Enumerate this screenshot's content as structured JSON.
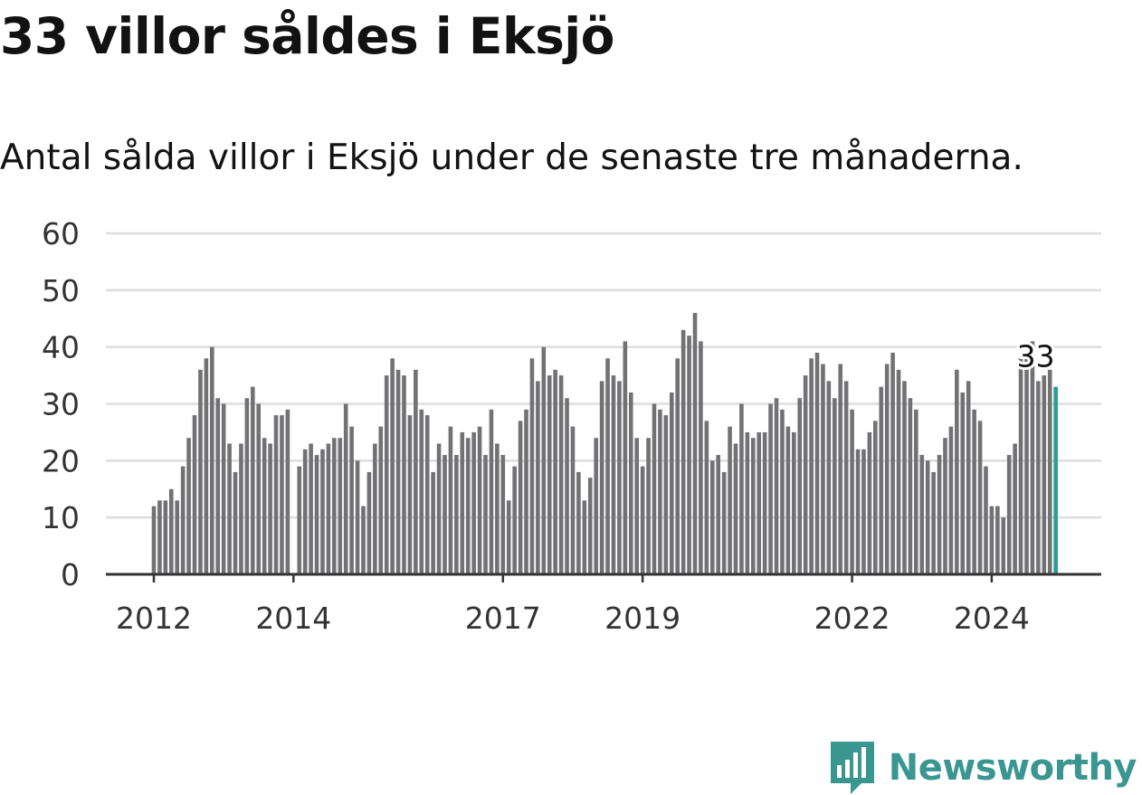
{
  "title": "33 villor såldes i Eksjö",
  "subtitle": "Antal sålda villor i Eksjö under de senaste tre månaderna.",
  "brand": "Newsworthy",
  "colors": {
    "bar": "#727275",
    "highlight": "#2a9d93",
    "grid": "#dddddd",
    "axis": "#333333",
    "brand": "#3a9691"
  },
  "chart_data": {
    "type": "bar",
    "start": "2012-01",
    "frequency": "monthly",
    "ylim": [
      0,
      60
    ],
    "yticks": [
      0,
      10,
      20,
      30,
      40,
      50,
      60
    ],
    "xtick_labels": [
      {
        "label": "2012",
        "month_index": 0
      },
      {
        "label": "2014",
        "month_index": 24
      },
      {
        "label": "2017",
        "month_index": 60
      },
      {
        "label": "2019",
        "month_index": 84
      },
      {
        "label": "2022",
        "month_index": 120
      },
      {
        "label": "2024",
        "month_index": 144
      }
    ],
    "values": [
      12,
      13,
      13,
      15,
      13,
      19,
      24,
      28,
      36,
      38,
      40,
      31,
      30,
      23,
      18,
      23,
      31,
      33,
      30,
      24,
      23,
      28,
      28,
      29,
      null,
      19,
      22,
      23,
      21,
      22,
      23,
      24,
      24,
      30,
      26,
      20,
      12,
      18,
      23,
      26,
      35,
      38,
      36,
      35,
      28,
      36,
      29,
      28,
      18,
      23,
      21,
      26,
      21,
      25,
      24,
      25,
      26,
      21,
      29,
      23,
      21,
      13,
      19,
      27,
      29,
      38,
      34,
      40,
      35,
      36,
      35,
      31,
      26,
      18,
      13,
      17,
      24,
      34,
      38,
      35,
      34,
      41,
      32,
      24,
      19,
      24,
      30,
      29,
      28,
      32,
      38,
      43,
      42,
      46,
      41,
      27,
      20,
      21,
      18,
      26,
      23,
      30,
      25,
      24,
      25,
      25,
      30,
      31,
      29,
      26,
      25,
      31,
      35,
      38,
      39,
      37,
      34,
      31,
      37,
      34,
      29,
      22,
      22,
      25,
      27,
      33,
      37,
      39,
      36,
      34,
      31,
      29,
      21,
      20,
      18,
      21,
      24,
      26,
      36,
      32,
      34,
      29,
      27,
      19,
      12,
      12,
      10,
      21,
      23,
      38,
      38,
      41,
      34,
      35,
      36,
      33
    ],
    "highlight_label": "33"
  }
}
